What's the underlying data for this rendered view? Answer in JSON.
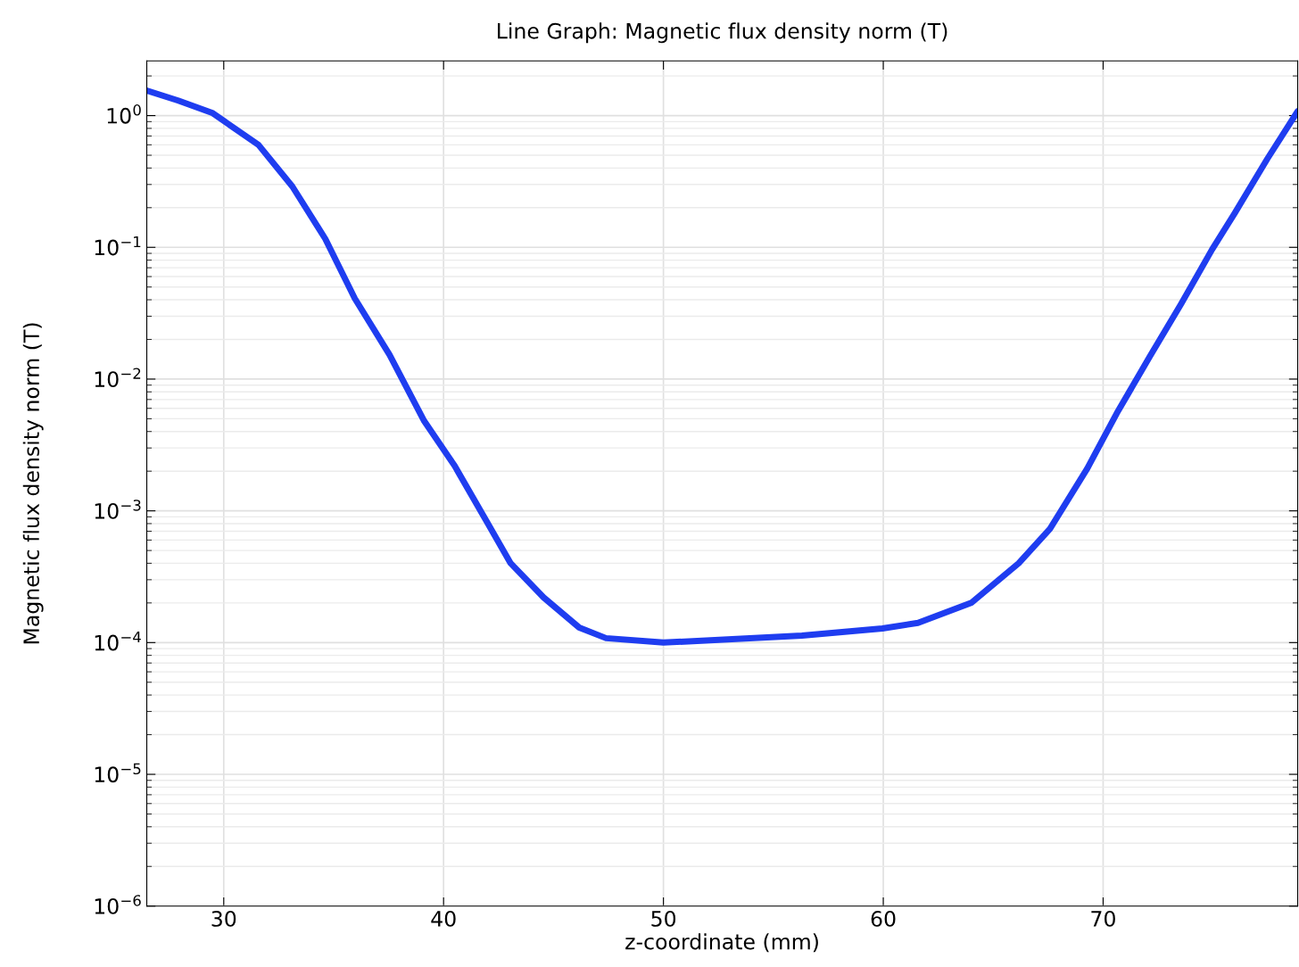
{
  "chart_data": {
    "type": "line",
    "title": "Line Graph: Magnetic flux density norm (T)",
    "xlabel": "z-coordinate (mm)",
    "ylabel": "Magnetic flux density norm (T)",
    "x": [
      26.5,
      27.93,
      29.47,
      31.58,
      33.12,
      34.62,
      35.96,
      37.54,
      39.12,
      40.5,
      42.0,
      43.05,
      44.55,
      46.17,
      47.39,
      50.0,
      56.3,
      59.96,
      61.58,
      64.0,
      66.16,
      67.58,
      69.28,
      70.62,
      72.12,
      73.54,
      74.95,
      75.97,
      77.47,
      78.85
    ],
    "series": [
      {
        "color": "#1f3df0",
        "values": [
          1.55,
          1.3,
          1.05,
          0.6,
          0.29,
          0.116,
          0.041,
          0.0153,
          0.0048,
          0.0022,
          0.00081,
          0.0004,
          0.00022,
          0.00013,
          0.000108,
          0.0001,
          0.000113,
          0.000128,
          0.000141,
          0.0002,
          0.0004,
          0.00073,
          0.0021,
          0.0055,
          0.0148,
          0.037,
          0.096,
          0.18,
          0.47,
          1.08
        ]
      }
    ],
    "log": "y",
    "grid": true,
    "marker": "none",
    "line_style": "solid",
    "xlim": [
      26.5,
      78.85
    ],
    "xticks": [
      30,
      40,
      50,
      60,
      70
    ],
    "ylim": [
      1e-06,
      2.6
    ],
    "yticks": [
      {
        "value": 1e-06,
        "label": "10$^{−6}$"
      },
      {
        "value": 1e-05,
        "label": "10$^{−5}$"
      },
      {
        "value": 0.0001,
        "label": "10$^{−4}$"
      },
      {
        "value": 0.001,
        "label": "10$^{−3}$"
      },
      {
        "value": 0.01,
        "label": "10$^{−2}$"
      },
      {
        "value": 0.1,
        "label": "10$^{−1}$"
      },
      {
        "value": 1,
        "label": "10$^{0}$"
      }
    ]
  }
}
